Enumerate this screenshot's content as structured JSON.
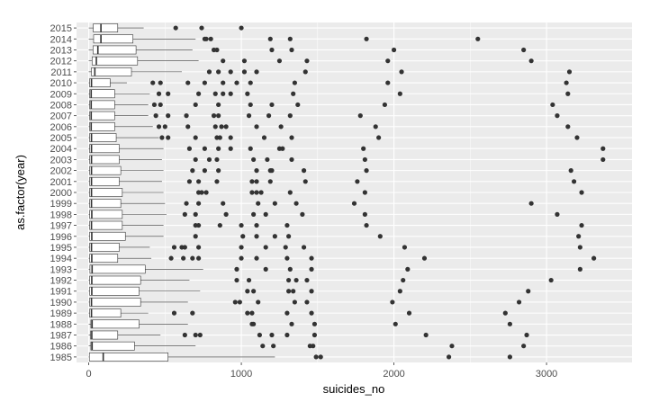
{
  "chart_data": {
    "type": "boxplot",
    "orientation": "horizontal",
    "xlabel": "suicides_no",
    "ylabel": "as.factor(year)",
    "xlim": [
      -80,
      3560
    ],
    "xticks": [
      0,
      1000,
      2000,
      3000
    ],
    "grid": true,
    "legend": "none",
    "colors": {
      "panel": "#ebebeb",
      "grid_major": "#ffffff",
      "box_fill": "#ffffff",
      "box_line": "#333333",
      "outlier": "#333333",
      "tick_text": "#4d4d4d"
    },
    "categories": [
      "1985",
      "1986",
      "1987",
      "1988",
      "1989",
      "1990",
      "1991",
      "1992",
      "1993",
      "1994",
      "1995",
      "1996",
      "1997",
      "1998",
      "1999",
      "2000",
      "2001",
      "2002",
      "2003",
      "2004",
      "2005",
      "2006",
      "2007",
      "2008",
      "2009",
      "2010",
      "2011",
      "2012",
      "2013",
      "2014",
      "2015"
    ],
    "boxes": [
      {
        "year": "1985",
        "min": 0,
        "q1": 4,
        "median": 95,
        "q3": 520,
        "max": 1220,
        "outliers": [
          1490,
          1520,
          2360,
          2760
        ]
      },
      {
        "year": "1986",
        "min": 0,
        "q1": 14,
        "median": 22,
        "q3": 300,
        "max": 700,
        "outliers": [
          1140,
          1210,
          1450,
          1470,
          2380,
          2850
        ]
      },
      {
        "year": "1987",
        "min": 0,
        "q1": 12,
        "median": 20,
        "q3": 190,
        "max": 470,
        "outliers": [
          630,
          700,
          730,
          1120,
          1200,
          1300,
          1480,
          2210,
          2870
        ]
      },
      {
        "year": "1988",
        "min": 0,
        "q1": 14,
        "median": 22,
        "q3": 330,
        "max": 650,
        "outliers": [
          1070,
          1080,
          1330,
          1480,
          2010,
          2760
        ]
      },
      {
        "year": "1989",
        "min": 0,
        "q1": 6,
        "median": 18,
        "q3": 210,
        "max": 390,
        "outliers": [
          560,
          680,
          1040,
          1070,
          1300,
          1460,
          2100,
          2730
        ]
      },
      {
        "year": "1990",
        "min": 0,
        "q1": 6,
        "median": 18,
        "q3": 340,
        "max": 650,
        "outliers": [
          960,
          990,
          1110,
          1350,
          1430,
          1990,
          2820
        ]
      },
      {
        "year": "1991",
        "min": 0,
        "q1": 6,
        "median": 20,
        "q3": 330,
        "max": 730,
        "outliers": [
          1040,
          1080,
          1310,
          1340,
          1460,
          2040,
          2880
        ]
      },
      {
        "year": "1992",
        "min": 0,
        "q1": 6,
        "median": 20,
        "q3": 340,
        "max": 660,
        "outliers": [
          970,
          1050,
          1310,
          1360,
          1430,
          2060,
          3030
        ]
      },
      {
        "year": "1993",
        "min": 0,
        "q1": 8,
        "median": 22,
        "q3": 370,
        "max": 750,
        "outliers": [
          970,
          1160,
          1320,
          1460,
          2090,
          3220
        ]
      },
      {
        "year": "1994",
        "min": 0,
        "q1": 6,
        "median": 20,
        "q3": 190,
        "max": 410,
        "outliers": [
          540,
          620,
          680,
          720,
          1000,
          1100,
          1300,
          1460,
          2200,
          3310
        ]
      },
      {
        "year": "1995",
        "min": 0,
        "q1": 6,
        "median": 18,
        "q3": 200,
        "max": 400,
        "outliers": [
          560,
          610,
          630,
          720,
          1000,
          1160,
          1290,
          1410,
          2070,
          3220
        ]
      },
      {
        "year": "1996",
        "min": 0,
        "q1": 6,
        "median": 20,
        "q3": 240,
        "max": 490,
        "outliers": [
          700,
          1010,
          1100,
          1220,
          1310,
          1910,
          3210
        ]
      },
      {
        "year": "1997",
        "min": 0,
        "q1": 6,
        "median": 18,
        "q3": 220,
        "max": 490,
        "outliers": [
          700,
          720,
          860,
          1000,
          1100,
          1300,
          1820,
          3230
        ]
      },
      {
        "year": "1998",
        "min": 0,
        "q1": 6,
        "median": 20,
        "q3": 220,
        "max": 510,
        "outliers": [
          630,
          700,
          900,
          1080,
          1160,
          1400,
          1810,
          3070
        ]
      },
      {
        "year": "1999",
        "min": 0,
        "q1": 6,
        "median": 18,
        "q3": 210,
        "max": 500,
        "outliers": [
          640,
          720,
          880,
          1110,
          1220,
          1360,
          1740,
          2900
        ]
      },
      {
        "year": "2000",
        "min": 0,
        "q1": 6,
        "median": 18,
        "q3": 220,
        "max": 490,
        "outliers": [
          720,
          740,
          770,
          1070,
          1100,
          1130,
          1320,
          1810,
          3230
        ]
      },
      {
        "year": "2001",
        "min": 0,
        "q1": 6,
        "median": 18,
        "q3": 200,
        "max": 480,
        "outliers": [
          660,
          720,
          840,
          1070,
          1100,
          1190,
          1420,
          1760,
          3180
        ]
      },
      {
        "year": "2002",
        "min": 0,
        "q1": 6,
        "median": 18,
        "q3": 210,
        "max": 490,
        "outliers": [
          680,
          760,
          850,
          1100,
          1190,
          1200,
          1410,
          1820,
          3160
        ]
      },
      {
        "year": "2003",
        "min": 0,
        "q1": 6,
        "median": 18,
        "q3": 200,
        "max": 480,
        "outliers": [
          700,
          790,
          840,
          1080,
          1170,
          1330,
          1810,
          3370
        ]
      },
      {
        "year": "2004",
        "min": 0,
        "q1": 6,
        "median": 18,
        "q3": 200,
        "max": 490,
        "outliers": [
          660,
          760,
          850,
          930,
          1060,
          1250,
          1270,
          1800,
          3370
        ]
      },
      {
        "year": "2005",
        "min": 0,
        "q1": 6,
        "median": 18,
        "q3": 180,
        "max": 460,
        "outliers": [
          480,
          520,
          700,
          840,
          860,
          930,
          1150,
          1330,
          1900,
          3200
        ]
      },
      {
        "year": "2006",
        "min": 0,
        "q1": 6,
        "median": 16,
        "q3": 170,
        "max": 420,
        "outliers": [
          460,
          500,
          650,
          830,
          870,
          900,
          1100,
          1260,
          1880,
          3140
        ]
      },
      {
        "year": "2007",
        "min": 0,
        "q1": 6,
        "median": 16,
        "q3": 170,
        "max": 390,
        "outliers": [
          440,
          520,
          640,
          820,
          850,
          1050,
          1180,
          1320,
          1780,
          3070
        ]
      },
      {
        "year": "2008",
        "min": 0,
        "q1": 6,
        "median": 16,
        "q3": 170,
        "max": 390,
        "outliers": [
          430,
          470,
          700,
          850,
          1060,
          1200,
          1370,
          1940,
          3040
        ]
      },
      {
        "year": "2009",
        "min": 0,
        "q1": 6,
        "median": 16,
        "q3": 170,
        "max": 400,
        "outliers": [
          460,
          520,
          720,
          830,
          880,
          930,
          1040,
          1340,
          2040,
          3140
        ]
      },
      {
        "year": "2010",
        "min": 0,
        "q1": 6,
        "median": 18,
        "q3": 140,
        "max": 250,
        "outliers": [
          420,
          470,
          650,
          760,
          880,
          970,
          1060,
          1350,
          1960,
          3130
        ]
      },
      {
        "year": "2011",
        "min": 0,
        "q1": 18,
        "median": 40,
        "q3": 280,
        "max": 610,
        "outliers": [
          790,
          850,
          930,
          1020,
          1100,
          1420,
          2050,
          3150
        ]
      },
      {
        "year": "2012",
        "min": 0,
        "q1": 22,
        "median": 50,
        "q3": 320,
        "max": 720,
        "outliers": [
          880,
          1020,
          1250,
          1430,
          1960,
          2900
        ]
      },
      {
        "year": "2013",
        "min": 0,
        "q1": 28,
        "median": 60,
        "q3": 310,
        "max": 680,
        "outliers": [
          820,
          840,
          1200,
          1330,
          2000,
          2850
        ]
      },
      {
        "year": "2014",
        "min": 0,
        "q1": 32,
        "median": 80,
        "q3": 290,
        "max": 700,
        "outliers": [
          760,
          770,
          800,
          1190,
          1320,
          1820,
          2550
        ]
      },
      {
        "year": "2015",
        "min": 0,
        "q1": 30,
        "median": 80,
        "q3": 190,
        "max": 360,
        "outliers": [
          570,
          740,
          1000
        ]
      }
    ]
  }
}
